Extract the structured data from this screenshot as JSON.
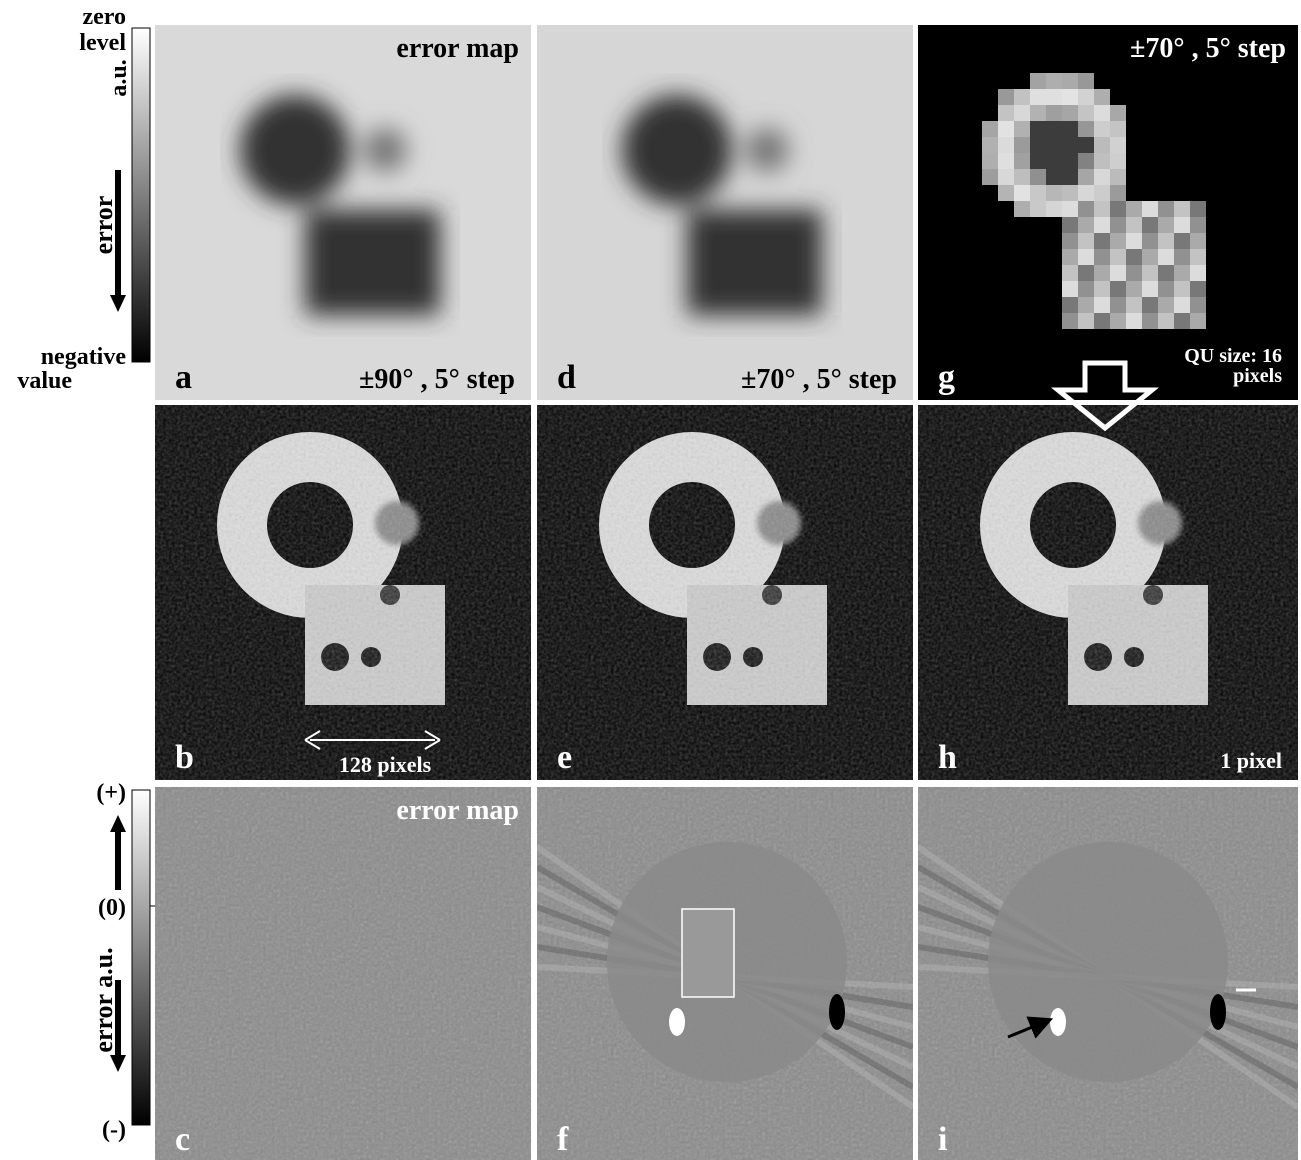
{
  "colorbar_top": {
    "top_label_lines": [
      "zero",
      "level"
    ],
    "unit": "a.u.",
    "axis_label": "error",
    "bottom_label_lines": [
      "negative",
      "value"
    ]
  },
  "colorbar_bottom": {
    "top": "(+)",
    "middle": "(0)",
    "axis_label": "error  a.u.",
    "bottom": "(-)"
  },
  "panels": [
    {
      "letter": "a",
      "top_right": "error  map",
      "bottom_right": "±90° , 5°  step"
    },
    {
      "letter": "d",
      "bottom_right": "±70° , 5°  step"
    },
    {
      "letter": "g",
      "top_right": "±70° , 5°  step",
      "bottom_right_lines": [
        "QU size: 16",
        "pixels"
      ]
    },
    {
      "letter": "b",
      "bottom_center": "128 pixels"
    },
    {
      "letter": "e"
    },
    {
      "letter": "h",
      "bottom_right": "1 pixel"
    },
    {
      "letter": "c",
      "top_right": "error  map"
    },
    {
      "letter": "f"
    },
    {
      "letter": "i"
    }
  ]
}
